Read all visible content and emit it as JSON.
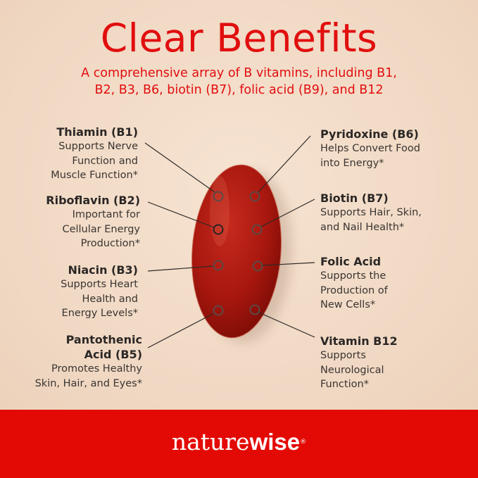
{
  "header": {
    "title": "Clear Benefits",
    "subtitle_line1": "A comprehensive array of B vitamins, including B1,",
    "subtitle_line2": "B2, B3, B6, biotin (B7), folic acid (B9), and B12"
  },
  "left_items": [
    {
      "name": "Thiamin (B1)",
      "lines": [
        "Supports Nerve",
        "Function and",
        "Muscle Function*"
      ]
    },
    {
      "name": "Riboflavin (B2)",
      "lines": [
        "Important for",
        "Cellular Energy",
        "Production*"
      ]
    },
    {
      "name": "Niacin (B3)",
      "lines": [
        "Supports Heart",
        "Health and",
        "Energy Levels*"
      ]
    },
    {
      "name": "Pantothenic",
      "name2": "Acid (B5)",
      "lines": [
        "Promotes Healthy",
        "Skin, Hair, and Eyes*"
      ]
    }
  ],
  "right_items": [
    {
      "name": "Pyridoxine (B6)",
      "lines": [
        "Helps Convert Food",
        "into Energy*"
      ]
    },
    {
      "name": "Biotin (B7)",
      "lines": [
        "Supports Hair, Skin,",
        "and Nail Health*"
      ]
    },
    {
      "name": "Folic Acid",
      "lines": [
        "Supports the",
        "Production of",
        "New Cells*"
      ]
    },
    {
      "name": "Vitamin B12",
      "lines": [
        "Supports",
        "Neurological",
        "Function*"
      ]
    }
  ],
  "footer": {
    "logo_part1": "nature",
    "logo_part2": "wise",
    "logo_mark": "®"
  },
  "colors": {
    "brand_red": "#e30a05",
    "title_red": "#e10e0e",
    "capsule": "#a8170e",
    "text": "#3a3532"
  }
}
